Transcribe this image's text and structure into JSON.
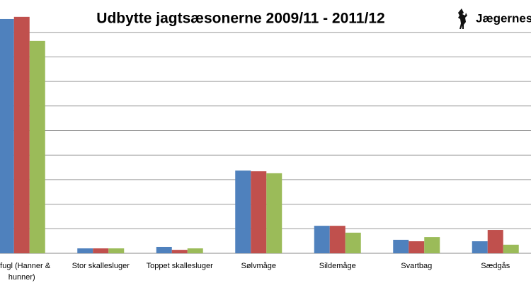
{
  "chart_data": {
    "type": "bar",
    "title": "Udbytte jagtsæsonerne 2009/11 - 2011/12",
    "logo_text": "Jægernes",
    "categories": [
      "erfugl (Hanner &\nhunner)",
      "Stor skallesluger",
      "Toppet skallesluger",
      "Sølvmåge",
      "Sildemåge",
      "Svartbag",
      "Sædgås"
    ],
    "series": [
      {
        "color": "#4f81bd",
        "values": [
          9.54,
          0.2,
          0.26,
          3.37,
          1.12,
          0.55,
          0.49
        ]
      },
      {
        "color": "#c0504d",
        "values": [
          9.63,
          0.2,
          0.14,
          3.34,
          1.12,
          0.49,
          0.95
        ]
      },
      {
        "color": "#9bbb59",
        "values": [
          8.65,
          0.2,
          0.2,
          3.26,
          0.84,
          0.66,
          0.35
        ]
      }
    ],
    "ylim": [
      0,
      10
    ],
    "yticks": [
      0,
      1,
      2,
      3,
      4,
      5,
      6,
      7,
      8,
      9
    ],
    "grid": true
  }
}
